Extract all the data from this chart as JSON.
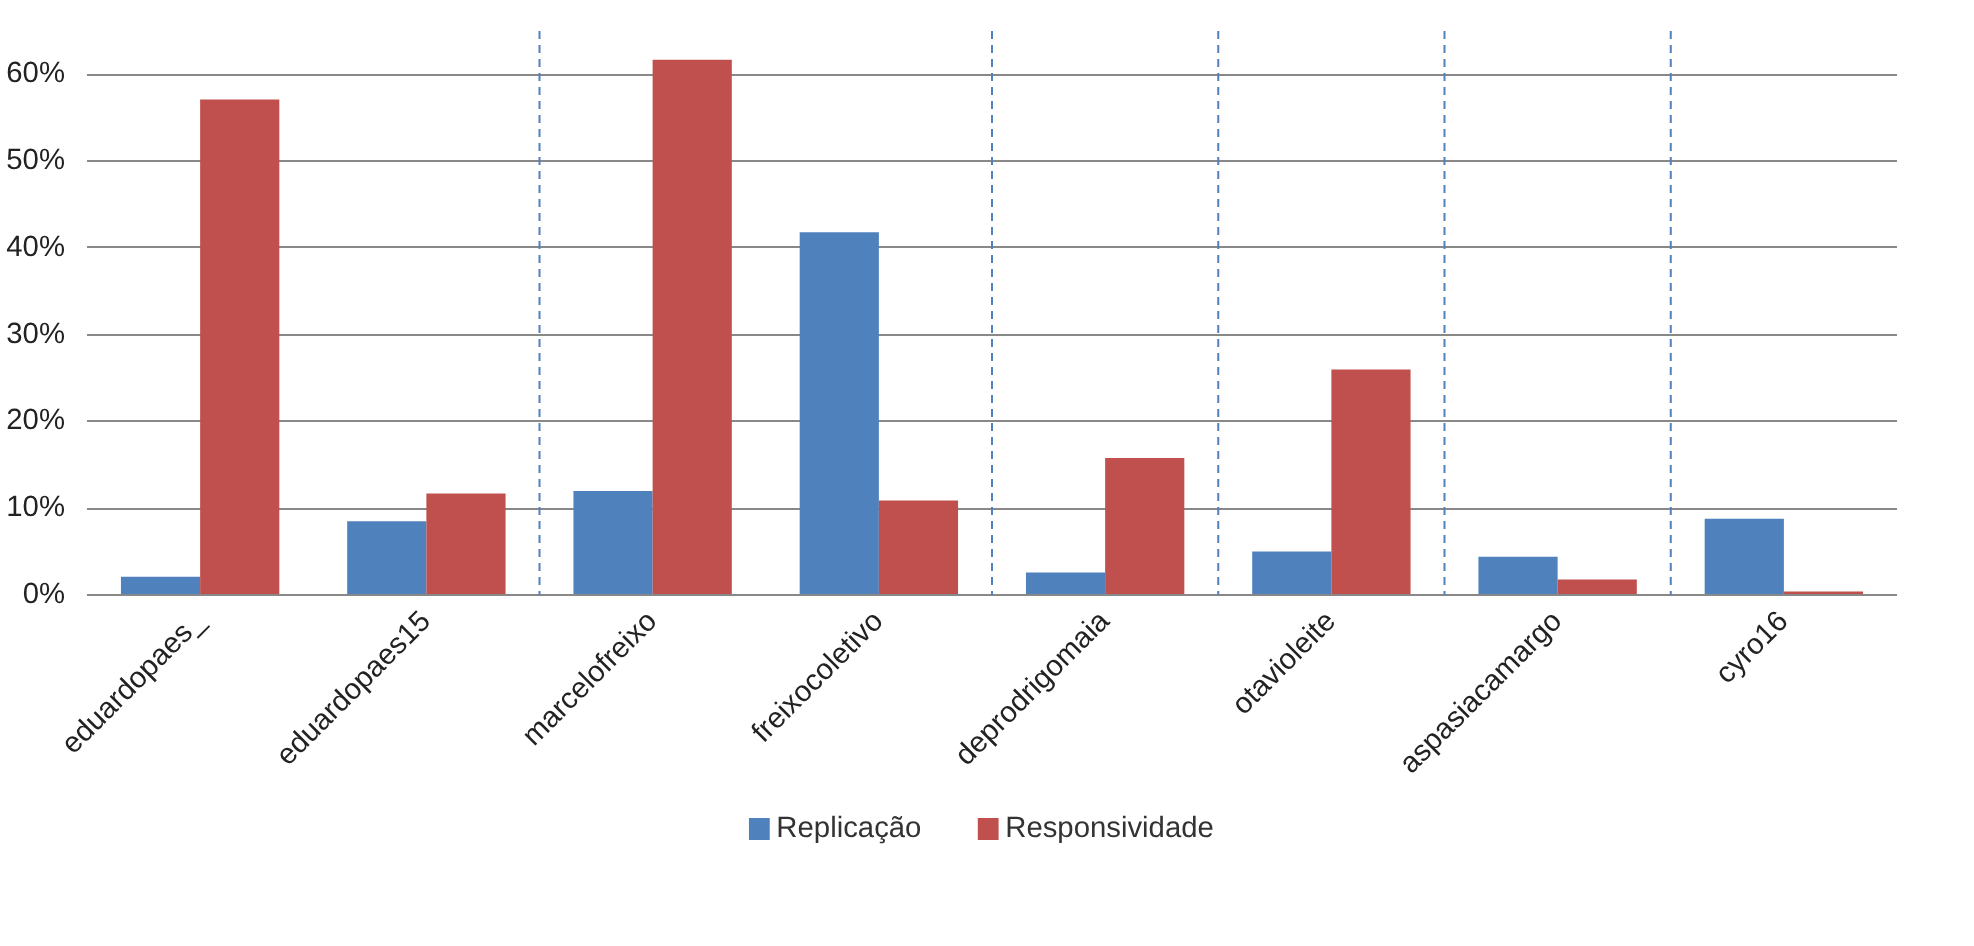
{
  "chart_data": {
    "type": "bar",
    "categories": [
      "eduardopaes_",
      "eduardopaes15",
      "marcelofreixo",
      "freixocoletivo",
      "deprodrigomaia",
      "otavioleite",
      "aspasiacamargo",
      "cyro16"
    ],
    "series": [
      {
        "name": "Replicação",
        "color": "#4f81bd",
        "values": [
          2.1,
          8.5,
          12,
          41.8,
          2.6,
          5,
          4.4,
          8.8
        ]
      },
      {
        "name": "Responsividade",
        "color": "#c0504d",
        "values": [
          57.1,
          11.7,
          61.7,
          10.9,
          15.8,
          26,
          1.8,
          0.4
        ]
      }
    ],
    "ylim": [
      0,
      65
    ],
    "yticks": [
      {
        "value": 0,
        "label": "0%"
      },
      {
        "value": 10,
        "label": "10%"
      },
      {
        "value": 20,
        "label": "20%"
      },
      {
        "value": 30,
        "label": "30%"
      },
      {
        "value": 40,
        "label": "40%"
      },
      {
        "value": 50,
        "label": "50%"
      },
      {
        "value": 60,
        "label": "60%"
      }
    ],
    "grid": "y",
    "legend": "bottom"
  }
}
